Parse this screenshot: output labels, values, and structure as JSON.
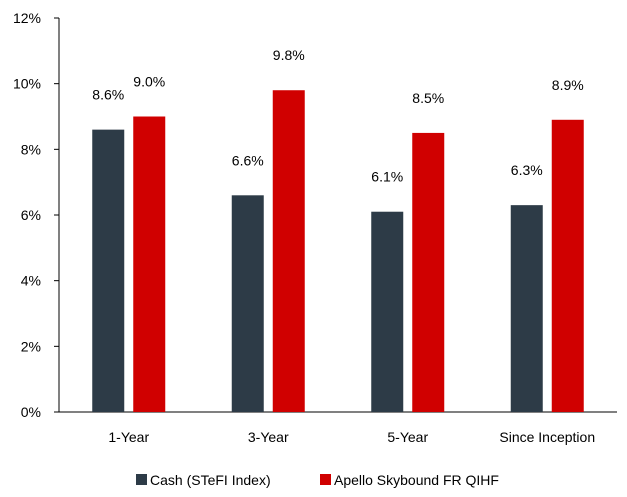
{
  "chart_data": {
    "type": "bar",
    "title": "",
    "xlabel": "",
    "ylabel": "",
    "categories": [
      "1-Year",
      "3-Year",
      "5-Year",
      "Since Inception"
    ],
    "series": [
      {
        "name": "Cash (STeFI Index)",
        "color": "#2d3b47",
        "values": [
          8.6,
          6.6,
          6.1,
          6.3
        ],
        "labels": [
          "8.6%",
          "6.6%",
          "6.1%",
          "6.3%"
        ]
      },
      {
        "name": "Apello Skybound FR QIHF",
        "color": "#d00000",
        "values": [
          9.0,
          9.8,
          8.5,
          8.9
        ],
        "labels": [
          "9.0%",
          "9.8%",
          "8.5%",
          "8.9%"
        ]
      }
    ],
    "ylim": [
      0,
      12
    ],
    "yticks": [
      0,
      2,
      4,
      6,
      8,
      10,
      12
    ],
    "ytick_labels": [
      "0%",
      "2%",
      "4%",
      "6%",
      "8%",
      "10%",
      "12%"
    ],
    "grid": false,
    "legend_position": "bottom"
  }
}
